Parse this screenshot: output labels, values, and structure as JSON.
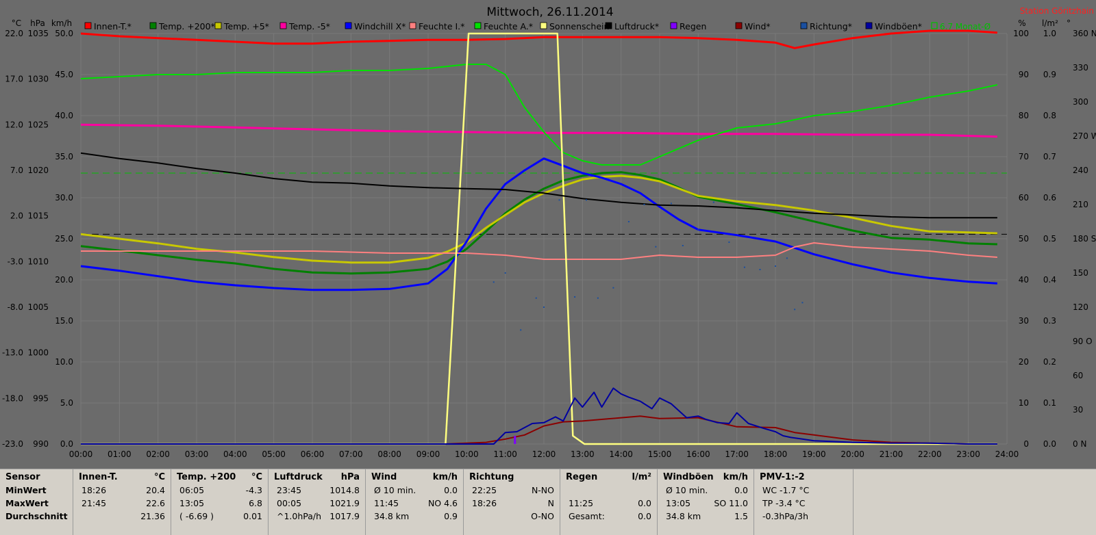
{
  "chart_data": {
    "type": "line",
    "title": "Mittwoch, 26.11.2014",
    "station": "Station Göritzhain",
    "left_units": [
      "°C",
      "hPa",
      "km/h"
    ],
    "right_units": [
      "%",
      "l/m²",
      "°"
    ],
    "x_ticks": [
      "00:00",
      "01:00",
      "02:00",
      "03:00",
      "04:00",
      "05:00",
      "06:00",
      "07:00",
      "08:00",
      "09:00",
      "10:00",
      "11:00",
      "12:00",
      "13:00",
      "14:00",
      "15:00",
      "16:00",
      "17:00",
      "18:00",
      "19:00",
      "20:00",
      "21:00",
      "22:00",
      "23:00",
      "24:00"
    ],
    "axes": {
      "temp": {
        "ticks": [
          "22.0",
          "17.0",
          "12.0",
          "7.0",
          "2.0",
          "-3.0",
          "-8.0",
          "-13.0",
          "-18.0",
          "-23.0"
        ],
        "range": [
          -23,
          22
        ]
      },
      "pressure": {
        "ticks": [
          "1035",
          "1030",
          "1025",
          "1020",
          "1015",
          "1010",
          "1005",
          "1000",
          "995",
          "990"
        ],
        "range": [
          990,
          1035
        ]
      },
      "wind": {
        "ticks": [
          "50.0",
          "45.0",
          "40.0",
          "35.0",
          "30.0",
          "25.0",
          "20.0",
          "15.0",
          "10.0",
          "5.0",
          "0.0"
        ],
        "range": [
          0,
          50
        ]
      },
      "humidity": {
        "ticks": [
          "100",
          "90",
          "80",
          "70",
          "60",
          "50",
          "40",
          "30",
          "20",
          "10",
          "0"
        ],
        "range": [
          0,
          100
        ]
      },
      "rain": {
        "ticks": [
          "1.0",
          "0.9",
          "0.8",
          "0.7",
          "0.6",
          "0.5",
          "0.4",
          "0.3",
          "0.2",
          "0.1",
          "0.0"
        ],
        "range": [
          0,
          1
        ]
      },
      "direction": {
        "ticks": [
          "360 N",
          "330",
          "300",
          "270 W",
          "240",
          "210",
          "180 S",
          "150",
          "120",
          "90 O",
          "60",
          "30",
          "0 N"
        ],
        "range": [
          0,
          360
        ]
      }
    },
    "legend": [
      {
        "name": "Innen-T.*",
        "color": "#ff0000"
      },
      {
        "name": "Temp. +200*",
        "color": "#008000"
      },
      {
        "name": "Temp. +5*",
        "color": "#c8c800"
      },
      {
        "name": "Temp. -5*",
        "color": "#ff00a0"
      },
      {
        "name": "Windchill X*",
        "color": "#0000ff"
      },
      {
        "name": "Feuchte I.*",
        "color": "#ff8080"
      },
      {
        "name": "Feuchte A.*",
        "color": "#00e000"
      },
      {
        "name": "Sonnenschein",
        "color": "#ffff80"
      },
      {
        "name": "Luftdruck*",
        "color": "#000000"
      },
      {
        "name": "Regen",
        "color": "#8000ff"
      },
      {
        "name": "Wind*",
        "color": "#8b0000"
      },
      {
        "name": "Richtung*",
        "color": "#1a4fa0"
      },
      {
        "name": "Windböen*",
        "color": "#0000a0"
      },
      {
        "name": "6.7 Monat-Ø",
        "color": "#00c000"
      }
    ],
    "series": [
      {
        "name": "Innen-T.*",
        "axis": "temp",
        "color": "#ff0000",
        "x": [
          0,
          1,
          2,
          3,
          4,
          5,
          6,
          7,
          8,
          9,
          10,
          11,
          12,
          13,
          14,
          15,
          16,
          17,
          18,
          18.5,
          19,
          20,
          21,
          22,
          23,
          23.75
        ],
        "y": [
          22.0,
          21.7,
          21.5,
          21.3,
          21.1,
          20.9,
          20.9,
          21.1,
          21.2,
          21.3,
          21.3,
          21.4,
          21.6,
          21.6,
          21.6,
          21.6,
          21.5,
          21.3,
          21.0,
          20.4,
          20.8,
          21.5,
          22.0,
          22.3,
          22.3,
          22.1
        ]
      },
      {
        "name": "Temp. +200*",
        "axis": "temp",
        "color": "#008000",
        "x": [
          0,
          1,
          2,
          3,
          4,
          5,
          6,
          7,
          8,
          9,
          9.5,
          10,
          10.5,
          11,
          11.5,
          12,
          12.5,
          13,
          13.5,
          14,
          14.5,
          15,
          15.5,
          16,
          17,
          18,
          19,
          20,
          21,
          22,
          23,
          23.75
        ],
        "y": [
          -1.3,
          -1.8,
          -2.3,
          -2.8,
          -3.2,
          -3.8,
          -4.2,
          -4.3,
          -4.2,
          -3.8,
          -3.0,
          -1.6,
          0.3,
          2.3,
          3.8,
          5.0,
          5.9,
          6.4,
          6.7,
          6.8,
          6.5,
          6.0,
          5.1,
          4.1,
          3.3,
          2.4,
          1.4,
          0.4,
          -0.4,
          -0.6,
          -1.0,
          -1.1
        ]
      },
      {
        "name": "Temp. +5*",
        "axis": "temp",
        "color": "#c8c800",
        "x": [
          0,
          1,
          2,
          3,
          4,
          5,
          6,
          7,
          8,
          9,
          9.5,
          10,
          10.5,
          11,
          11.5,
          12,
          12.5,
          13,
          13.5,
          14,
          14.5,
          15,
          15.5,
          16,
          17,
          18,
          19,
          20,
          21,
          22,
          23,
          23.75
        ],
        "y": [
          0.0,
          -0.5,
          -1.0,
          -1.6,
          -2.0,
          -2.5,
          -2.9,
          -3.1,
          -3.1,
          -2.6,
          -1.9,
          -0.9,
          0.7,
          2.1,
          3.5,
          4.5,
          5.3,
          6.0,
          6.3,
          6.4,
          6.2,
          5.8,
          5.0,
          4.2,
          3.6,
          3.2,
          2.6,
          1.8,
          0.9,
          0.3,
          0.2,
          0.1
        ]
      },
      {
        "name": "Temp. -5*",
        "axis": "temp",
        "color": "#ff00a0",
        "x": [
          0,
          2,
          4,
          6,
          8,
          10,
          12,
          14,
          16,
          18,
          20,
          22,
          23.75
        ],
        "y": [
          12.0,
          11.9,
          11.7,
          11.5,
          11.3,
          11.2,
          11.1,
          11.1,
          11.0,
          11.0,
          10.9,
          10.9,
          10.7
        ]
      },
      {
        "name": "Windchill X*",
        "axis": "temp",
        "color": "#0000ff",
        "x": [
          0,
          1,
          2,
          3,
          4,
          5,
          6,
          7,
          8,
          9,
          9.5,
          10,
          10.5,
          11,
          11.5,
          12,
          12.5,
          13,
          13.5,
          14,
          14.5,
          15,
          15.5,
          16,
          17,
          18,
          18.5,
          19,
          20,
          21,
          22,
          23,
          23.75
        ],
        "y": [
          -3.5,
          -4.0,
          -4.6,
          -5.2,
          -5.6,
          -5.9,
          -6.1,
          -6.1,
          -6.0,
          -5.4,
          -3.8,
          -0.8,
          2.8,
          5.5,
          7.0,
          8.3,
          7.5,
          6.7,
          6.2,
          5.5,
          4.5,
          3.0,
          1.6,
          0.5,
          -0.1,
          -0.8,
          -1.5,
          -2.2,
          -3.3,
          -4.2,
          -4.8,
          -5.2,
          -5.4
        ]
      },
      {
        "name": "Feuchte I.*",
        "axis": "humidity",
        "color": "#ff8080",
        "x": [
          0,
          2,
          4,
          6,
          8,
          10,
          11,
          12,
          13,
          14,
          15,
          16,
          17,
          18,
          18.5,
          19,
          20,
          21,
          22,
          23,
          23.75
        ],
        "y": [
          47,
          47,
          47,
          47,
          46.5,
          46.5,
          46,
          45,
          45,
          45,
          46,
          45.5,
          45.5,
          46,
          48,
          49,
          48,
          47.5,
          47,
          46,
          45.5
        ]
      },
      {
        "name": "Feuchte A.*",
        "axis": "humidity",
        "color": "#00e000",
        "x": [
          0,
          1,
          2,
          3,
          4,
          5,
          6,
          7,
          8,
          9,
          10,
          10.5,
          11,
          11.5,
          12,
          12.5,
          13,
          13.5,
          14,
          14.5,
          15,
          16,
          17,
          18,
          19,
          20,
          21,
          22,
          23,
          23.75
        ],
        "y": [
          89,
          89.5,
          90,
          90,
          90.5,
          90.5,
          90.5,
          91,
          91,
          91.5,
          92.5,
          92.5,
          90,
          82,
          76,
          71,
          69,
          68,
          68,
          68,
          70,
          74,
          77,
          78,
          80,
          81,
          82.5,
          84.5,
          86,
          87.5
        ]
      },
      {
        "name": "Sonnenschein",
        "axis": "humidity",
        "color": "#ffff80",
        "x": [
          0,
          9.45,
          10.05,
          12.35,
          12.75,
          13.05,
          23.75
        ],
        "y": [
          0,
          0,
          100,
          100,
          2,
          0,
          0
        ]
      },
      {
        "name": "Luftdruck*",
        "axis": "pressure",
        "color": "#000000",
        "x": [
          0,
          1,
          2,
          3,
          4,
          5,
          6,
          7,
          8,
          9,
          10,
          11,
          12,
          13,
          14,
          15,
          16,
          17,
          18,
          19,
          20,
          21,
          22,
          23,
          23.75
        ],
        "y": [
          1021.9,
          1021.3,
          1020.8,
          1020.2,
          1019.7,
          1019.1,
          1018.7,
          1018.6,
          1018.3,
          1018.1,
          1018.0,
          1017.9,
          1017.5,
          1016.9,
          1016.5,
          1016.2,
          1016.1,
          1015.9,
          1015.6,
          1015.3,
          1015.1,
          1014.9,
          1014.8,
          1014.8,
          1014.8
        ]
      },
      {
        "name": "Wind*",
        "axis": "wind",
        "color": "#8b0000",
        "x": [
          0,
          9.45,
          10.5,
          11,
          11.5,
          12,
          12.5,
          13,
          14,
          14.5,
          15,
          16,
          17,
          18,
          18.5,
          19,
          20,
          21,
          22,
          23,
          23.75
        ],
        "y": [
          0,
          0,
          0.2,
          0.6,
          1.1,
          2.2,
          2.7,
          2.8,
          3.2,
          3.4,
          3.1,
          3.2,
          2.1,
          2.0,
          1.4,
          1.1,
          0.5,
          0.2,
          0.1,
          0,
          0
        ]
      },
      {
        "name": "Windböen*",
        "axis": "wind",
        "color": "#0000a0",
        "x": [
          0,
          10.7,
          11,
          11.3,
          11.7,
          12,
          12.3,
          12.5,
          12.8,
          13,
          13.3,
          13.5,
          13.8,
          14,
          14.2,
          14.5,
          14.8,
          15,
          15.3,
          15.7,
          16,
          16.2,
          16.5,
          16.8,
          17,
          17.3,
          17.7,
          18,
          18.2,
          18.4,
          18.7,
          19,
          19.5,
          20,
          21,
          22,
          23,
          23.75
        ],
        "y": [
          0,
          0,
          1.4,
          1.5,
          2.5,
          2.6,
          3.3,
          2.8,
          5.6,
          4.5,
          6.3,
          4.5,
          6.8,
          6.1,
          5.7,
          5.2,
          4.3,
          5.6,
          4.9,
          3.2,
          3.4,
          3.0,
          2.6,
          2.5,
          3.8,
          2.5,
          1.9,
          1.5,
          1.0,
          0.8,
          0.6,
          0.4,
          0.3,
          0.2,
          0.1,
          0.1,
          0,
          0
        ]
      },
      {
        "name": "Regen",
        "axis": "rain",
        "color": "#8000ff",
        "x": [
          11.25
        ],
        "y": [
          0.02
        ]
      },
      {
        "name": "Richtung*",
        "axis": "direction",
        "color": "#1a4fa0",
        "type": "scatter",
        "x": [
          10.7,
          11.0,
          11.4,
          11.8,
          12.0,
          12.4,
          12.8,
          13.1,
          13.4,
          13.8,
          14.2,
          14.6,
          14.9,
          15.3,
          15.6,
          16.0,
          16.4,
          16.8,
          17.2,
          17.6,
          18.0,
          18.3,
          18.5,
          18.7
        ],
        "y": [
          142,
          150,
          100,
          128,
          120,
          214,
          129,
          214,
          128,
          137,
          195,
          210,
          173,
          211,
          174,
          188,
          212,
          177,
          155,
          153,
          156,
          163,
          118,
          124
        ]
      }
    ],
    "reference_lines": [
      {
        "name": "6.7 Monat-Ø",
        "axis": "temp",
        "value": 6.7,
        "style": "dashed",
        "color": "#00c000"
      },
      {
        "name": "0 °C",
        "axis": "temp",
        "value": 0,
        "style": "dashed",
        "color": "#000000"
      }
    ]
  },
  "stats": {
    "columns": [
      {
        "header": "Sensor",
        "unit": "",
        "rows": [
          [
            "MinWert",
            "",
            ""
          ],
          [
            "MaxWert",
            "",
            ""
          ],
          [
            "Durchschnitt",
            "",
            ""
          ]
        ]
      },
      {
        "header": "Innen-T.",
        "unit": "°C",
        "rows": [
          [
            "18:26",
            "20.4",
            ""
          ],
          [
            "21:45",
            "22.6",
            ""
          ],
          [
            "",
            "21.36",
            ""
          ]
        ]
      },
      {
        "header": "Temp. +200",
        "unit": "°C",
        "rows": [
          [
            "06:05",
            "-4.3",
            ""
          ],
          [
            "13:05",
            "6.8",
            ""
          ],
          [
            "( -6.69 )",
            "0.01",
            ""
          ]
        ]
      },
      {
        "header": "Luftdruck",
        "unit": "hPa",
        "rows": [
          [
            "23:45",
            "1014.8",
            ""
          ],
          [
            "00:05",
            "1021.9",
            ""
          ],
          [
            "^1.0hPa/h",
            "1017.9",
            ""
          ]
        ]
      },
      {
        "header": "Wind",
        "unit": "km/h",
        "rows": [
          [
            "Ø 10 min.",
            "0.0",
            ""
          ],
          [
            "11:45",
            "NO 4.6",
            ""
          ],
          [
            "34.8 km",
            "0.9",
            ""
          ]
        ]
      },
      {
        "header": "Richtung",
        "unit": "",
        "rows": [
          [
            "22:25",
            "N-NO",
            ""
          ],
          [
            "18:26",
            "N",
            ""
          ],
          [
            "",
            "O-NO",
            ""
          ]
        ]
      },
      {
        "header": "Regen",
        "unit": "l/m²",
        "rows": [
          [
            "",
            "",
            ""
          ],
          [
            "11:25",
            "0.0",
            ""
          ],
          [
            "Gesamt:",
            "0.0",
            ""
          ]
        ]
      },
      {
        "header": "Windböen",
        "unit": "km/h",
        "rows": [
          [
            "Ø 10 min.",
            "0.0",
            ""
          ],
          [
            "13:05",
            "SO 11.0",
            ""
          ],
          [
            "34.8 km",
            "1.5",
            ""
          ]
        ]
      },
      {
        "header": "PMV-1:-2",
        "unit": "",
        "rows": [
          [
            "WC -1.7 °C",
            "",
            ""
          ],
          [
            "TP -3.4 °C",
            "",
            ""
          ],
          [
            "-0.3hPa/3h",
            "",
            ""
          ]
        ]
      }
    ]
  }
}
